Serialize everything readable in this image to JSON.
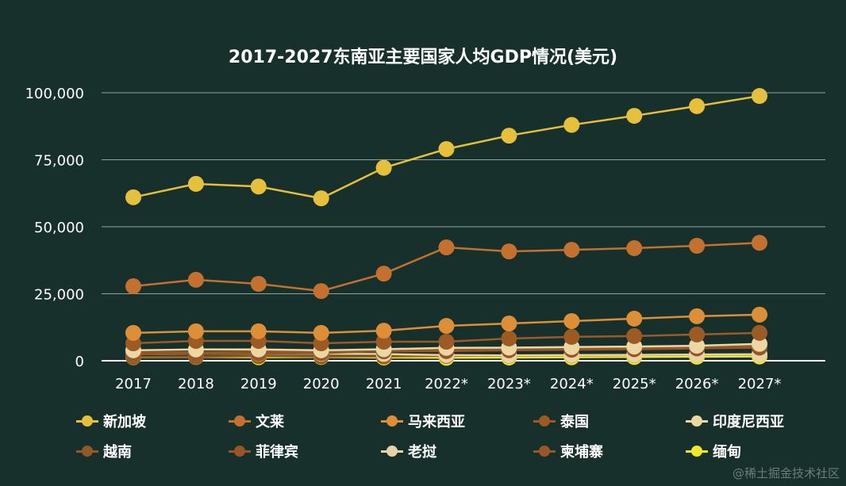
{
  "chart_data": {
    "type": "line",
    "title": "2017-2027东南亚主要国家人均GDP情况(美元)",
    "xlabel": "",
    "ylabel": "",
    "categories": [
      "2017",
      "2018",
      "2019",
      "2020",
      "2021",
      "2022*",
      "2023*",
      "2024*",
      "2025*",
      "2026*",
      "2027*"
    ],
    "ylim": [
      0,
      100000
    ],
    "yticks": [
      0,
      25000,
      50000,
      75000,
      100000
    ],
    "ytick_labels": [
      "0",
      "25,000",
      "50,000",
      "75,000",
      "100,000"
    ],
    "grid": true,
    "legend_position": "bottom",
    "series": [
      {
        "name": "新加坡",
        "color": "#e6bf3c",
        "values": [
          61000,
          66000,
          65000,
          60600,
          72000,
          79000,
          84000,
          88000,
          91400,
          95000,
          98800
        ]
      },
      {
        "name": "文莱",
        "color": "#c4702e",
        "values": [
          27800,
          30200,
          28700,
          26000,
          32500,
          42300,
          40800,
          41400,
          42000,
          42900,
          44000
        ]
      },
      {
        "name": "马来西亚",
        "color": "#dd8f38",
        "values": [
          10400,
          11000,
          11000,
          10400,
          11200,
          13000,
          13900,
          14800,
          15700,
          16600,
          17200
        ]
      },
      {
        "name": "泰国",
        "color": "#9c5a24",
        "values": [
          6500,
          7400,
          7400,
          6500,
          7100,
          7100,
          8300,
          8900,
          9200,
          9800,
          10400
        ]
      },
      {
        "name": "印度尼西亚",
        "color": "#ecd6a4",
        "values": [
          3900,
          4200,
          4200,
          3900,
          4300,
          4800,
          4900,
          5100,
          5300,
          5600,
          6300
        ]
      },
      {
        "name": "越南",
        "color": "#8f5a26",
        "values": [
          2400,
          2600,
          2700,
          2800,
          3700,
          4100,
          4300,
          4600,
          4900,
          5200,
          5500
        ]
      },
      {
        "name": "菲律宾",
        "color": "#9a5426",
        "values": [
          3100,
          3200,
          3500,
          3300,
          3500,
          3600,
          3900,
          4100,
          4300,
          4600,
          4900
        ]
      },
      {
        "name": "老挝",
        "color": "#e8d3a6",
        "values": [
          2400,
          2600,
          2600,
          2600,
          2500,
          2100,
          2000,
          2100,
          2200,
          2300,
          2400
        ]
      },
      {
        "name": "柬埔寨",
        "color": "#9a5626",
        "values": [
          1400,
          1500,
          1700,
          1600,
          1600,
          1800,
          1900,
          2000,
          2100,
          2300,
          2400
        ]
      },
      {
        "name": "缅甸",
        "color": "#f2e82a",
        "values": [
          1300,
          1400,
          1300,
          1400,
          1200,
          1100,
          1200,
          1300,
          1400,
          1500,
          1600
        ]
      }
    ]
  },
  "watermark": "@稀土掘金技术社区"
}
